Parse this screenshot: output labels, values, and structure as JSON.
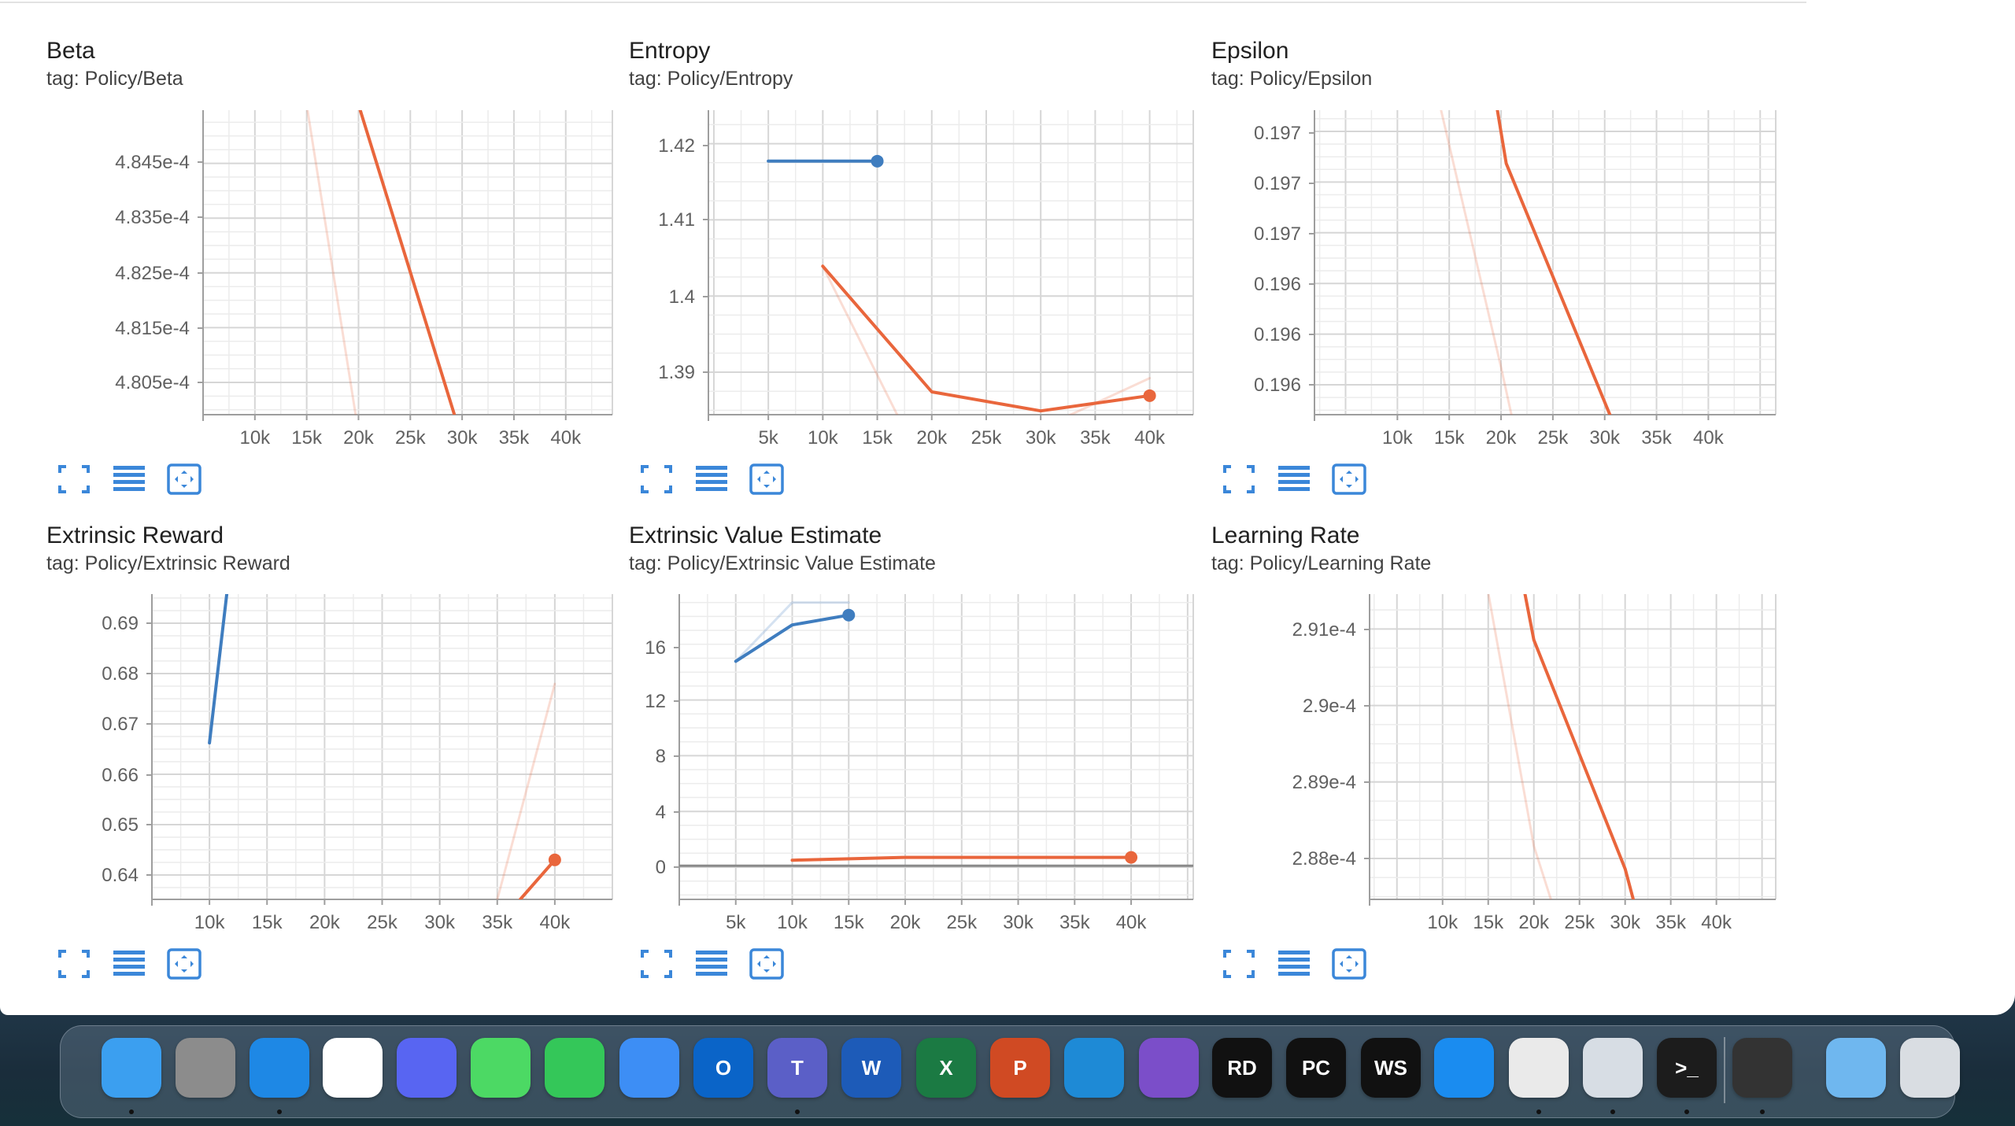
{
  "chart_data": [
    {
      "type": "line",
      "title": "Beta",
      "tag": "tag: Policy/Beta",
      "xticks": [
        "10k",
        "15k",
        "20k",
        "25k",
        "30k",
        "35k",
        "40k"
      ],
      "yticks": [
        "4.805e-4",
        "4.815e-4",
        "4.825e-4",
        "4.835e-4",
        "4.845e-4"
      ],
      "xlim": [
        5000,
        44500
      ],
      "ylim": [
        0.00048,
        0.0004855
      ],
      "series": [
        {
          "color": "#e9663c",
          "raw": true,
          "x": [
            15000,
            20100
          ],
          "y": [
            0.0004856,
            0.00047955
          ]
        },
        {
          "color": "#e9663c",
          "raw": false,
          "x": [
            20000,
            30000
          ],
          "y": [
            0.0004856,
            0.00047955
          ]
        }
      ]
    },
    {
      "type": "line",
      "title": "Entropy",
      "tag": "tag: Policy/Entropy",
      "xticks": [
        "5k",
        "10k",
        "15k",
        "20k",
        "25k",
        "30k",
        "35k",
        "40k"
      ],
      "yticks": [
        "1.39",
        "1.4",
        "1.41",
        "1.42"
      ],
      "xlim": [
        -500,
        44000
      ],
      "ylim": [
        1.3855,
        1.4255
      ],
      "series": [
        {
          "color": "#3f7dbf",
          "raw": false,
          "x": [
            5000,
            15000
          ],
          "y": [
            1.4188,
            1.4188
          ],
          "end_marker": true
        },
        {
          "color": "#e9663c",
          "raw": true,
          "x": [
            10000,
            17000
          ],
          "y": [
            1.405,
            1.385
          ]
        },
        {
          "color": "#e9663c",
          "raw": true,
          "x": [
            32000,
            40000
          ],
          "y": [
            1.385,
            1.3903
          ]
        },
        {
          "color": "#e9663c",
          "raw": false,
          "x": [
            10000,
            20000,
            30000,
            40000
          ],
          "y": [
            1.405,
            1.3885,
            1.386,
            1.388
          ],
          "end_marker": true
        }
      ]
    },
    {
      "type": "line",
      "title": "Epsilon",
      "tag": "tag: Policy/Epsilon",
      "xticks": [
        "10k",
        "15k",
        "20k",
        "25k",
        "30k",
        "35k",
        "40k"
      ],
      "yticks": [
        "0.196",
        "0.196",
        "0.196",
        "0.197",
        "0.197",
        "0.197"
      ],
      "xlim": [
        2000,
        46500
      ],
      "ylim": [
        0.1958,
        0.1974
      ],
      "series": [
        {
          "color": "#e9663c",
          "raw": true,
          "x": [
            14000,
            20000,
            21000
          ],
          "y": [
            0.19745,
            0.19605,
            0.1958
          ]
        },
        {
          "color": "#e9663c",
          "raw": false,
          "x": [
            19500,
            20500,
            30500
          ],
          "y": [
            0.19745,
            0.19712,
            0.1958
          ]
        }
      ]
    },
    {
      "type": "line",
      "title": "Extrinsic Reward",
      "tag": "tag: Policy/Extrinsic Reward",
      "xticks": [
        "10k",
        "15k",
        "20k",
        "25k",
        "30k",
        "35k",
        "40k"
      ],
      "yticks": [
        "0.64",
        "0.65",
        "0.66",
        "0.67",
        "0.68",
        "0.69"
      ],
      "xlim": [
        5000,
        45000
      ],
      "ylim": [
        0.636,
        0.6955
      ],
      "series": [
        {
          "color": "#3f7dbf",
          "raw": true,
          "x": [
            10000,
            11500
          ],
          "y": [
            0.6665,
            0.6955
          ]
        },
        {
          "color": "#3f7dbf",
          "raw": false,
          "x": [
            10000,
            11500
          ],
          "y": [
            0.6665,
            0.6955
          ]
        },
        {
          "color": "#e9663c",
          "raw": true,
          "x": [
            35000,
            40000
          ],
          "y": [
            0.636,
            0.678
          ]
        },
        {
          "color": "#e9663c",
          "raw": false,
          "x": [
            37000,
            40000
          ],
          "y": [
            0.636,
            0.6437
          ],
          "end_marker": true
        }
      ]
    },
    {
      "type": "line",
      "title": "Extrinsic Value Estimate",
      "tag": "tag: Policy/Extrinsic Value Estimate",
      "xticks": [
        "5k",
        "10k",
        "15k",
        "20k",
        "25k",
        "30k",
        "35k",
        "40k"
      ],
      "yticks": [
        "0",
        "4",
        "8",
        "12",
        "16"
      ],
      "xlim": [
        0,
        45500
      ],
      "ylim": [
        -2.4,
        19.4
      ],
      "series": [
        {
          "color": "#3f7dbf",
          "raw": true,
          "x": [
            5000,
            10000,
            15000
          ],
          "y": [
            14.6,
            18.8,
            18.8
          ]
        },
        {
          "color": "#3f7dbf",
          "raw": false,
          "x": [
            5000,
            10000,
            15000
          ],
          "y": [
            14.6,
            17.2,
            17.9
          ],
          "end_marker": true
        },
        {
          "color": "#e9663c",
          "raw": false,
          "x": [
            10000,
            20000,
            40000
          ],
          "y": [
            0.4,
            0.6,
            0.6
          ],
          "end_marker": true
        }
      ]
    },
    {
      "type": "line",
      "title": "Learning Rate",
      "tag": "tag: Policy/Learning Rate",
      "xticks": [
        "10k",
        "15k",
        "20k",
        "25k",
        "30k",
        "35k",
        "40k"
      ],
      "yticks": [
        "2.88e-4",
        "2.89e-4",
        "2.9e-4",
        "2.91e-4"
      ],
      "xlim": [
        2000,
        46500
      ],
      "ylim": [
        0.0002875,
        0.0002915
      ],
      "series": [
        {
          "color": "#e9663c",
          "raw": true,
          "x": [
            15000,
            20000,
            22000
          ],
          "y": [
            0.00029152,
            0.0002882,
            0.00028745
          ]
        },
        {
          "color": "#e9663c",
          "raw": false,
          "x": [
            19000,
            20000,
            30000,
            31000
          ],
          "y": [
            0.00029152,
            0.0002909,
            0.0002879,
            0.00028745
          ]
        }
      ]
    }
  ],
  "toolbar": {
    "icons": [
      "fullscreen-icon",
      "data-table-icon",
      "fit-domain-icon"
    ]
  },
  "dock": {
    "apps": [
      {
        "id": "finder",
        "label": "",
        "color": "#3b9ff0",
        "running": true
      },
      {
        "id": "system-settings",
        "label": "",
        "color": "#8c8c8c",
        "running": false
      },
      {
        "id": "safari",
        "label": "",
        "color": "#1e88e5",
        "running": true
      },
      {
        "id": "chrome",
        "label": "",
        "color": "#ffffff",
        "running": false
      },
      {
        "id": "discord",
        "label": "",
        "color": "#5865f2",
        "running": false
      },
      {
        "id": "messages",
        "label": "",
        "color": "#4cd964",
        "running": false
      },
      {
        "id": "facetime",
        "label": "",
        "color": "#34c759",
        "running": false
      },
      {
        "id": "mail",
        "label": "",
        "color": "#3d8ef5",
        "running": false
      },
      {
        "id": "outlook",
        "label": "O",
        "color": "#0a64c8",
        "running": false
      },
      {
        "id": "teams",
        "label": "T",
        "color": "#5b5fc7",
        "running": true
      },
      {
        "id": "word",
        "label": "W",
        "color": "#1d5bb8",
        "running": false
      },
      {
        "id": "excel",
        "label": "X",
        "color": "#1b7a43",
        "running": false
      },
      {
        "id": "powerpoint",
        "label": "P",
        "color": "#d04a23",
        "running": false
      },
      {
        "id": "vscode",
        "label": "",
        "color": "#1e8ad6",
        "running": false
      },
      {
        "id": "visual-studio",
        "label": "",
        "color": "#7b4ec9",
        "running": false
      },
      {
        "id": "rider",
        "label": "RD",
        "color": "#111111",
        "running": false
      },
      {
        "id": "pycharm",
        "label": "PC",
        "color": "#111111",
        "running": false
      },
      {
        "id": "webstorm",
        "label": "WS",
        "color": "#111111",
        "running": false
      },
      {
        "id": "app-store",
        "label": "",
        "color": "#1a8cf0",
        "running": false
      },
      {
        "id": "unity-hub",
        "label": "",
        "color": "#eaeaea",
        "running": true
      },
      {
        "id": "preview",
        "label": "",
        "color": "#d7dde4",
        "running": true
      },
      {
        "id": "terminal",
        "label": ">_",
        "color": "#1c1c1c",
        "running": true
      },
      {
        "id": "unity",
        "label": "",
        "color": "#333333",
        "running": true
      },
      {
        "id": "downloads-folder",
        "label": "",
        "color": "#6fb7ef",
        "running": false
      },
      {
        "id": "trash",
        "label": "",
        "color": "#d9dde2",
        "running": false
      }
    ]
  }
}
